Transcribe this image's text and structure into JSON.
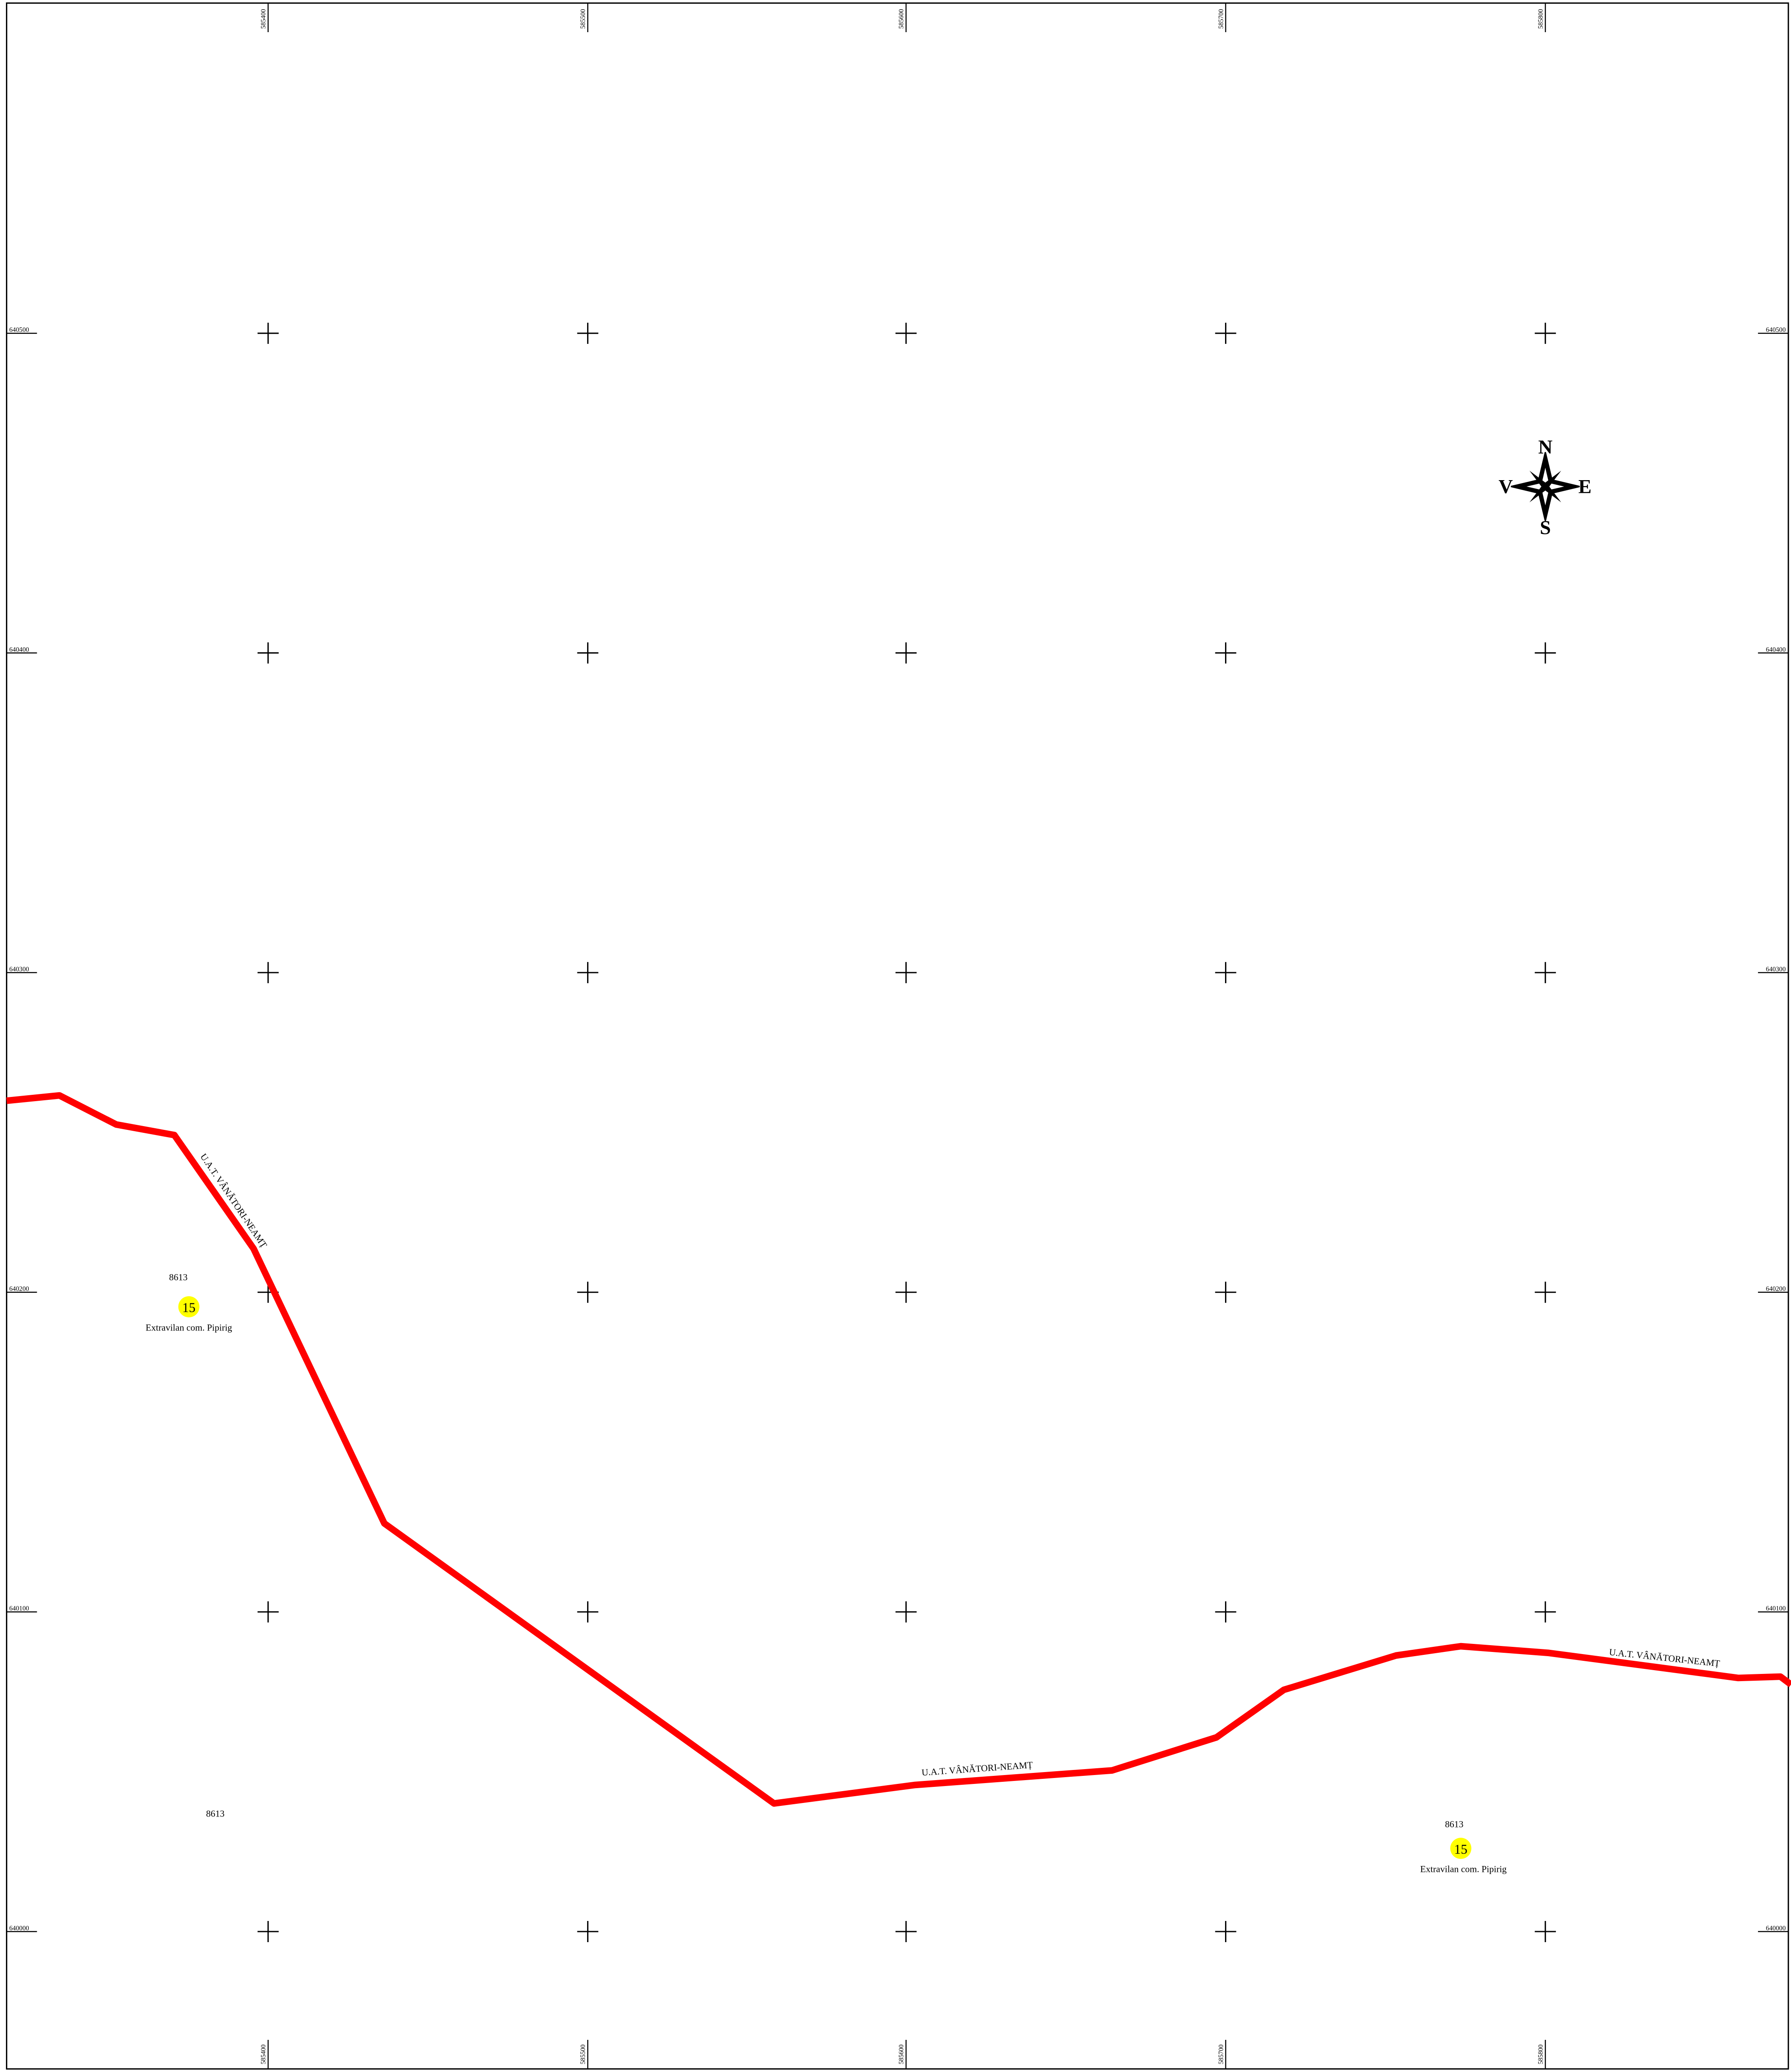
{
  "grid": {
    "eastings": [
      585400,
      585500,
      585600,
      585700,
      585800
    ],
    "northings": [
      640500,
      640400,
      640300,
      640200,
      640100,
      640000
    ]
  },
  "compass": {
    "north": "N",
    "east": "E",
    "south": "S",
    "west": "V"
  },
  "boundary_labels": [
    "U.A.T. VÂNĂTORI-NEAMȚ",
    "U.A.T. VÂNĂTORI-NEAMȚ",
    "U.A.T. VÂNĂTORI-NEAMȚ"
  ],
  "parcels": [
    {
      "number": "8613",
      "plot": "15",
      "zone": "Extravilan com. Pipirig"
    },
    {
      "number": "8613"
    },
    {
      "number": "8613",
      "plot": "15",
      "zone": "Extravilan com. Pipirig"
    }
  ]
}
